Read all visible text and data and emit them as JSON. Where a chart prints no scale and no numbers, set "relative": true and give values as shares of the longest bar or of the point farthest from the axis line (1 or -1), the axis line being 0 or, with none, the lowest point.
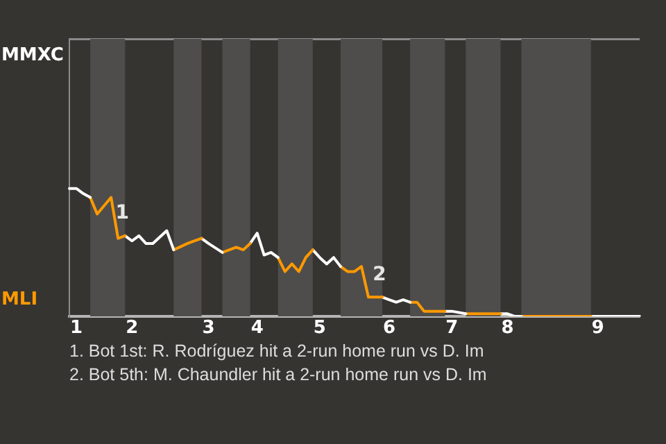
{
  "chart_data": {
    "type": "line",
    "relative": true,
    "categories": [
      null,
      "1",
      null,
      null,
      null,
      null,
      null,
      null,
      null,
      "2",
      null,
      null,
      null,
      null,
      null,
      null,
      null,
      null,
      null,
      null,
      "3",
      null,
      null,
      null,
      null,
      null,
      null,
      "4",
      null,
      null,
      null,
      null,
      null,
      null,
      null,
      null,
      "5",
      null,
      null,
      null,
      null,
      null,
      null,
      null,
      null,
      null,
      "6",
      null,
      null,
      null,
      null,
      null,
      null,
      null,
      null,
      "7",
      null,
      null,
      null,
      null,
      null,
      null,
      null,
      "8",
      null,
      null,
      null,
      null,
      null,
      null,
      null,
      null,
      null,
      null,
      null,
      null,
      "9",
      null,
      null,
      null,
      null,
      null,
      null
    ],
    "series": [
      {
        "color": "#ffffff",
        "values": [
          1,
          1,
          0.96,
          0.93,
          null,
          null,
          null,
          null,
          null,
          null,
          null,
          null,
          null,
          null,
          null,
          null,
          null,
          null,
          null,
          null,
          null,
          null,
          null,
          null,
          null,
          null,
          null,
          null,
          null,
          null,
          null,
          null,
          null,
          null,
          null,
          null,
          null,
          null,
          null,
          null,
          null,
          null,
          null,
          null,
          null,
          null,
          null,
          null,
          null,
          null,
          null,
          null,
          null,
          null,
          null,
          null,
          null,
          null,
          null,
          null,
          null,
          null,
          null,
          null,
          null,
          null,
          null,
          null,
          null,
          null,
          null,
          null,
          null,
          null,
          null,
          null,
          null,
          null,
          null,
          null,
          null,
          null,
          null
        ]
      },
      {
        "name": "1",
        "color": "#ff9900",
        "values": [
          null,
          null,
          null,
          0.93,
          0.8,
          null,
          0.93,
          0.61,
          0.63,
          null,
          null,
          null,
          null,
          null,
          null,
          null,
          null,
          null,
          null,
          null,
          null,
          null,
          null,
          null,
          null,
          null,
          null,
          null,
          null,
          null,
          null,
          null,
          null,
          null,
          null,
          null,
          null,
          null,
          null,
          null,
          null,
          null,
          null,
          null,
          null,
          null,
          null,
          null,
          null,
          null,
          null,
          null,
          null,
          null,
          null,
          null,
          null,
          null,
          null,
          null,
          null,
          null,
          null,
          null,
          null,
          null,
          null,
          null,
          null,
          null,
          null,
          null,
          null,
          null,
          null,
          null,
          null,
          null,
          null,
          null,
          null,
          null,
          null
        ]
      },
      {
        "color": "#ffffff",
        "values": [
          null,
          null,
          null,
          null,
          null,
          null,
          null,
          null,
          0.63,
          0.59,
          0.63,
          0.57,
          0.57,
          null,
          0.67,
          0.52,
          null,
          null,
          null,
          null,
          null,
          null,
          null,
          null,
          null,
          null,
          null,
          null,
          null,
          null,
          null,
          null,
          null,
          null,
          null,
          null,
          null,
          null,
          null,
          null,
          null,
          null,
          null,
          null,
          null,
          null,
          null,
          null,
          null,
          null,
          null,
          null,
          null,
          null,
          null,
          null,
          null,
          null,
          null,
          null,
          null,
          null,
          null,
          null,
          null,
          null,
          null,
          null,
          null,
          null,
          null,
          null,
          null,
          null,
          null,
          null,
          null,
          null,
          null,
          null,
          null,
          null,
          null
        ]
      },
      {
        "color": "#ff9900",
        "values": [
          null,
          null,
          null,
          null,
          null,
          null,
          null,
          null,
          null,
          null,
          null,
          null,
          null,
          null,
          null,
          0.52,
          null,
          0.57,
          0.59,
          0.61,
          null,
          null,
          null,
          null,
          null,
          null,
          null,
          null,
          null,
          null,
          null,
          null,
          null,
          null,
          null,
          null,
          null,
          null,
          null,
          null,
          null,
          null,
          null,
          null,
          null,
          null,
          null,
          null,
          null,
          null,
          null,
          null,
          null,
          null,
          null,
          null,
          null,
          null,
          null,
          null,
          null,
          null,
          null,
          null,
          null,
          null,
          null,
          null,
          null,
          null,
          null,
          null,
          null,
          null,
          null,
          null,
          null,
          null,
          null,
          null,
          null,
          null,
          null
        ]
      },
      {
        "color": "#ffffff",
        "values": [
          null,
          null,
          null,
          null,
          null,
          null,
          null,
          null,
          null,
          null,
          null,
          null,
          null,
          null,
          null,
          null,
          null,
          null,
          null,
          0.61,
          0.57,
          null,
          0.5,
          null,
          null,
          null,
          null,
          null,
          null,
          null,
          null,
          null,
          null,
          null,
          null,
          null,
          null,
          null,
          null,
          null,
          null,
          null,
          null,
          null,
          null,
          null,
          null,
          null,
          null,
          null,
          null,
          null,
          null,
          null,
          null,
          null,
          null,
          null,
          null,
          null,
          null,
          null,
          null,
          null,
          null,
          null,
          null,
          null,
          null,
          null,
          null,
          null,
          null,
          null,
          null,
          null,
          null,
          null,
          null,
          null,
          null,
          null,
          null
        ]
      },
      {
        "color": "#ff9900",
        "values": [
          null,
          null,
          null,
          null,
          null,
          null,
          null,
          null,
          null,
          null,
          null,
          null,
          null,
          null,
          null,
          null,
          null,
          null,
          null,
          null,
          null,
          null,
          0.5,
          0.52,
          0.54,
          0.52,
          0.57,
          null,
          null,
          null,
          null,
          null,
          null,
          null,
          null,
          null,
          null,
          null,
          null,
          null,
          null,
          null,
          null,
          null,
          null,
          null,
          null,
          null,
          null,
          null,
          null,
          null,
          null,
          null,
          null,
          null,
          null,
          null,
          null,
          null,
          null,
          null,
          null,
          null,
          null,
          null,
          null,
          null,
          null,
          null,
          null,
          null,
          null,
          null,
          null,
          null,
          null,
          null,
          null,
          null,
          null,
          null,
          null
        ]
      },
      {
        "color": "#ffffff",
        "values": [
          null,
          null,
          null,
          null,
          null,
          null,
          null,
          null,
          null,
          null,
          null,
          null,
          null,
          null,
          null,
          null,
          null,
          null,
          null,
          null,
          null,
          null,
          null,
          null,
          null,
          null,
          0.57,
          0.65,
          0.48,
          0.5,
          0.46,
          null,
          null,
          null,
          null,
          null,
          null,
          null,
          null,
          null,
          null,
          null,
          null,
          null,
          null,
          null,
          null,
          null,
          null,
          null,
          null,
          null,
          null,
          null,
          null,
          null,
          null,
          null,
          null,
          null,
          null,
          null,
          null,
          null,
          null,
          null,
          null,
          null,
          null,
          null,
          null,
          null,
          null,
          null,
          null,
          null,
          null,
          null,
          null,
          null,
          null,
          null,
          null
        ]
      },
      {
        "color": "#ff9900",
        "values": [
          null,
          null,
          null,
          null,
          null,
          null,
          null,
          null,
          null,
          null,
          null,
          null,
          null,
          null,
          null,
          null,
          null,
          null,
          null,
          null,
          null,
          null,
          null,
          null,
          null,
          null,
          null,
          null,
          null,
          null,
          0.46,
          0.35,
          0.41,
          0.35,
          0.46,
          0.52,
          null,
          null,
          null,
          null,
          null,
          null,
          null,
          null,
          null,
          null,
          null,
          null,
          null,
          null,
          null,
          null,
          null,
          null,
          null,
          null,
          null,
          null,
          null,
          null,
          null,
          null,
          null,
          null,
          null,
          null,
          null,
          null,
          null,
          null,
          null,
          null,
          null,
          null,
          null,
          null,
          null,
          null,
          null,
          null,
          null,
          null,
          null
        ]
      },
      {
        "color": "#ffffff",
        "values": [
          null,
          null,
          null,
          null,
          null,
          null,
          null,
          null,
          null,
          null,
          null,
          null,
          null,
          null,
          null,
          null,
          null,
          null,
          null,
          null,
          null,
          null,
          null,
          null,
          null,
          null,
          null,
          null,
          null,
          null,
          null,
          null,
          null,
          null,
          null,
          0.52,
          0.46,
          0.41,
          0.46,
          0.39,
          null,
          null,
          null,
          null,
          null,
          null,
          null,
          null,
          null,
          null,
          null,
          null,
          null,
          null,
          null,
          null,
          null,
          null,
          null,
          null,
          null,
          null,
          null,
          null,
          null,
          null,
          null,
          null,
          null,
          null,
          null,
          null,
          null,
          null,
          null,
          null,
          null,
          null,
          null,
          null,
          null,
          null,
          null
        ]
      },
      {
        "name": "2",
        "color": "#ff9900",
        "values": [
          null,
          null,
          null,
          null,
          null,
          null,
          null,
          null,
          null,
          null,
          null,
          null,
          null,
          null,
          null,
          null,
          null,
          null,
          null,
          null,
          null,
          null,
          null,
          null,
          null,
          null,
          null,
          null,
          null,
          null,
          null,
          null,
          null,
          null,
          null,
          null,
          null,
          null,
          null,
          0.39,
          0.35,
          0.35,
          0.39,
          0.15,
          0.15,
          0.15,
          null,
          null,
          null,
          null,
          null,
          null,
          null,
          null,
          null,
          null,
          null,
          null,
          null,
          null,
          null,
          null,
          null,
          null,
          null,
          null,
          null,
          null,
          null,
          null,
          null,
          null,
          null,
          null,
          null,
          null,
          null,
          null,
          null,
          null,
          null,
          null,
          null
        ]
      },
      {
        "color": "#ffffff",
        "values": [
          null,
          null,
          null,
          null,
          null,
          null,
          null,
          null,
          null,
          null,
          null,
          null,
          null,
          null,
          null,
          null,
          null,
          null,
          null,
          null,
          null,
          null,
          null,
          null,
          null,
          null,
          null,
          null,
          null,
          null,
          null,
          null,
          null,
          null,
          null,
          null,
          null,
          null,
          null,
          null,
          null,
          null,
          null,
          null,
          null,
          0.15,
          0.13,
          0.11,
          0.13,
          0.11,
          null,
          null,
          null,
          null,
          null,
          null,
          null,
          null,
          null,
          null,
          null,
          null,
          null,
          null,
          null,
          null,
          null,
          null,
          null,
          null,
          null,
          null,
          null,
          null,
          null,
          null,
          null,
          null,
          null,
          null,
          null,
          null,
          null
        ]
      },
      {
        "color": "#ff9900",
        "values": [
          null,
          null,
          null,
          null,
          null,
          null,
          null,
          null,
          null,
          null,
          null,
          null,
          null,
          null,
          null,
          null,
          null,
          null,
          null,
          null,
          null,
          null,
          null,
          null,
          null,
          null,
          null,
          null,
          null,
          null,
          null,
          null,
          null,
          null,
          null,
          null,
          null,
          null,
          null,
          null,
          null,
          null,
          null,
          null,
          null,
          null,
          null,
          null,
          null,
          0.11,
          0.11,
          0.04,
          null,
          null,
          0.04,
          null,
          null,
          null,
          null,
          null,
          null,
          null,
          null,
          null,
          null,
          null,
          null,
          null,
          null,
          null,
          null,
          null,
          null,
          null,
          null,
          null,
          null,
          null,
          null,
          null,
          null,
          null,
          null
        ]
      },
      {
        "color": "#ffffff",
        "values": [
          null,
          null,
          null,
          null,
          null,
          null,
          null,
          null,
          null,
          null,
          null,
          null,
          null,
          null,
          null,
          null,
          null,
          null,
          null,
          null,
          null,
          null,
          null,
          null,
          null,
          null,
          null,
          null,
          null,
          null,
          null,
          null,
          null,
          null,
          null,
          null,
          null,
          null,
          null,
          null,
          null,
          null,
          null,
          null,
          null,
          null,
          null,
          null,
          null,
          null,
          null,
          null,
          null,
          null,
          0.04,
          0.04,
          null,
          0.02,
          null,
          null,
          null,
          null,
          null,
          null,
          null,
          null,
          null,
          null,
          null,
          null,
          null,
          null,
          null,
          null,
          null,
          null,
          null,
          null,
          null,
          null,
          null,
          null,
          null
        ]
      },
      {
        "color": "#ff9900",
        "values": [
          null,
          null,
          null,
          null,
          null,
          null,
          null,
          null,
          null,
          null,
          null,
          null,
          null,
          null,
          null,
          null,
          null,
          null,
          null,
          null,
          null,
          null,
          null,
          null,
          null,
          null,
          null,
          null,
          null,
          null,
          null,
          null,
          null,
          null,
          null,
          null,
          null,
          null,
          null,
          null,
          null,
          null,
          null,
          null,
          null,
          null,
          null,
          null,
          null,
          null,
          null,
          null,
          null,
          null,
          null,
          null,
          null,
          0.02,
          0.02,
          null,
          null,
          0.02,
          0.02,
          null,
          null,
          null,
          null,
          null,
          null,
          null,
          null,
          null,
          null,
          null,
          null,
          null,
          null,
          null,
          null,
          null,
          null,
          null,
          null
        ]
      },
      {
        "color": "#ffffff",
        "values": [
          null,
          null,
          null,
          null,
          null,
          null,
          null,
          null,
          null,
          null,
          null,
          null,
          null,
          null,
          null,
          null,
          null,
          null,
          null,
          null,
          null,
          null,
          null,
          null,
          null,
          null,
          null,
          null,
          null,
          null,
          null,
          null,
          null,
          null,
          null,
          null,
          null,
          null,
          null,
          null,
          null,
          null,
          null,
          null,
          null,
          null,
          null,
          null,
          null,
          null,
          null,
          null,
          null,
          null,
          null,
          null,
          null,
          null,
          null,
          null,
          null,
          null,
          0.02,
          0.02,
          0,
          0,
          null,
          null,
          null,
          null,
          null,
          null,
          null,
          null,
          null,
          null,
          null,
          null,
          null,
          null,
          null,
          null,
          null
        ]
      },
      {
        "color": "#ff9900",
        "values": [
          null,
          null,
          null,
          null,
          null,
          null,
          null,
          null,
          null,
          null,
          null,
          null,
          null,
          null,
          null,
          null,
          null,
          null,
          null,
          null,
          null,
          null,
          null,
          null,
          null,
          null,
          null,
          null,
          null,
          null,
          null,
          null,
          null,
          null,
          null,
          null,
          null,
          null,
          null,
          null,
          null,
          null,
          null,
          null,
          null,
          null,
          null,
          null,
          null,
          null,
          null,
          null,
          null,
          null,
          null,
          null,
          null,
          null,
          null,
          null,
          null,
          null,
          null,
          null,
          null,
          0,
          null,
          null,
          null,
          null,
          null,
          null,
          null,
          null,
          null,
          0,
          null,
          null,
          null,
          null,
          null,
          null,
          null
        ]
      },
      {
        "color": "#ffffff",
        "values": [
          null,
          null,
          null,
          null,
          null,
          null,
          null,
          null,
          null,
          null,
          null,
          null,
          null,
          null,
          null,
          null,
          null,
          null,
          null,
          null,
          null,
          null,
          null,
          null,
          null,
          null,
          null,
          null,
          null,
          null,
          null,
          null,
          null,
          null,
          null,
          null,
          null,
          null,
          null,
          null,
          null,
          null,
          null,
          null,
          null,
          null,
          null,
          null,
          null,
          null,
          null,
          null,
          null,
          null,
          null,
          null,
          null,
          null,
          null,
          null,
          null,
          null,
          null,
          null,
          null,
          null,
          null,
          null,
          null,
          null,
          null,
          null,
          null,
          null,
          null,
          0,
          null,
          null,
          null,
          null,
          null,
          null,
          0
        ]
      }
    ],
    "legend": false,
    "marker": "none",
    "line_style": "solid",
    "annotations": [
      "MMXC",
      "MLI",
      "1. Bot 1st: R. Rodríguez hit a 2-run home run vs D. Im",
      "2. Bot 5th: M. Chaundler hit a 2-run home run vs D. Im"
    ]
  }
}
